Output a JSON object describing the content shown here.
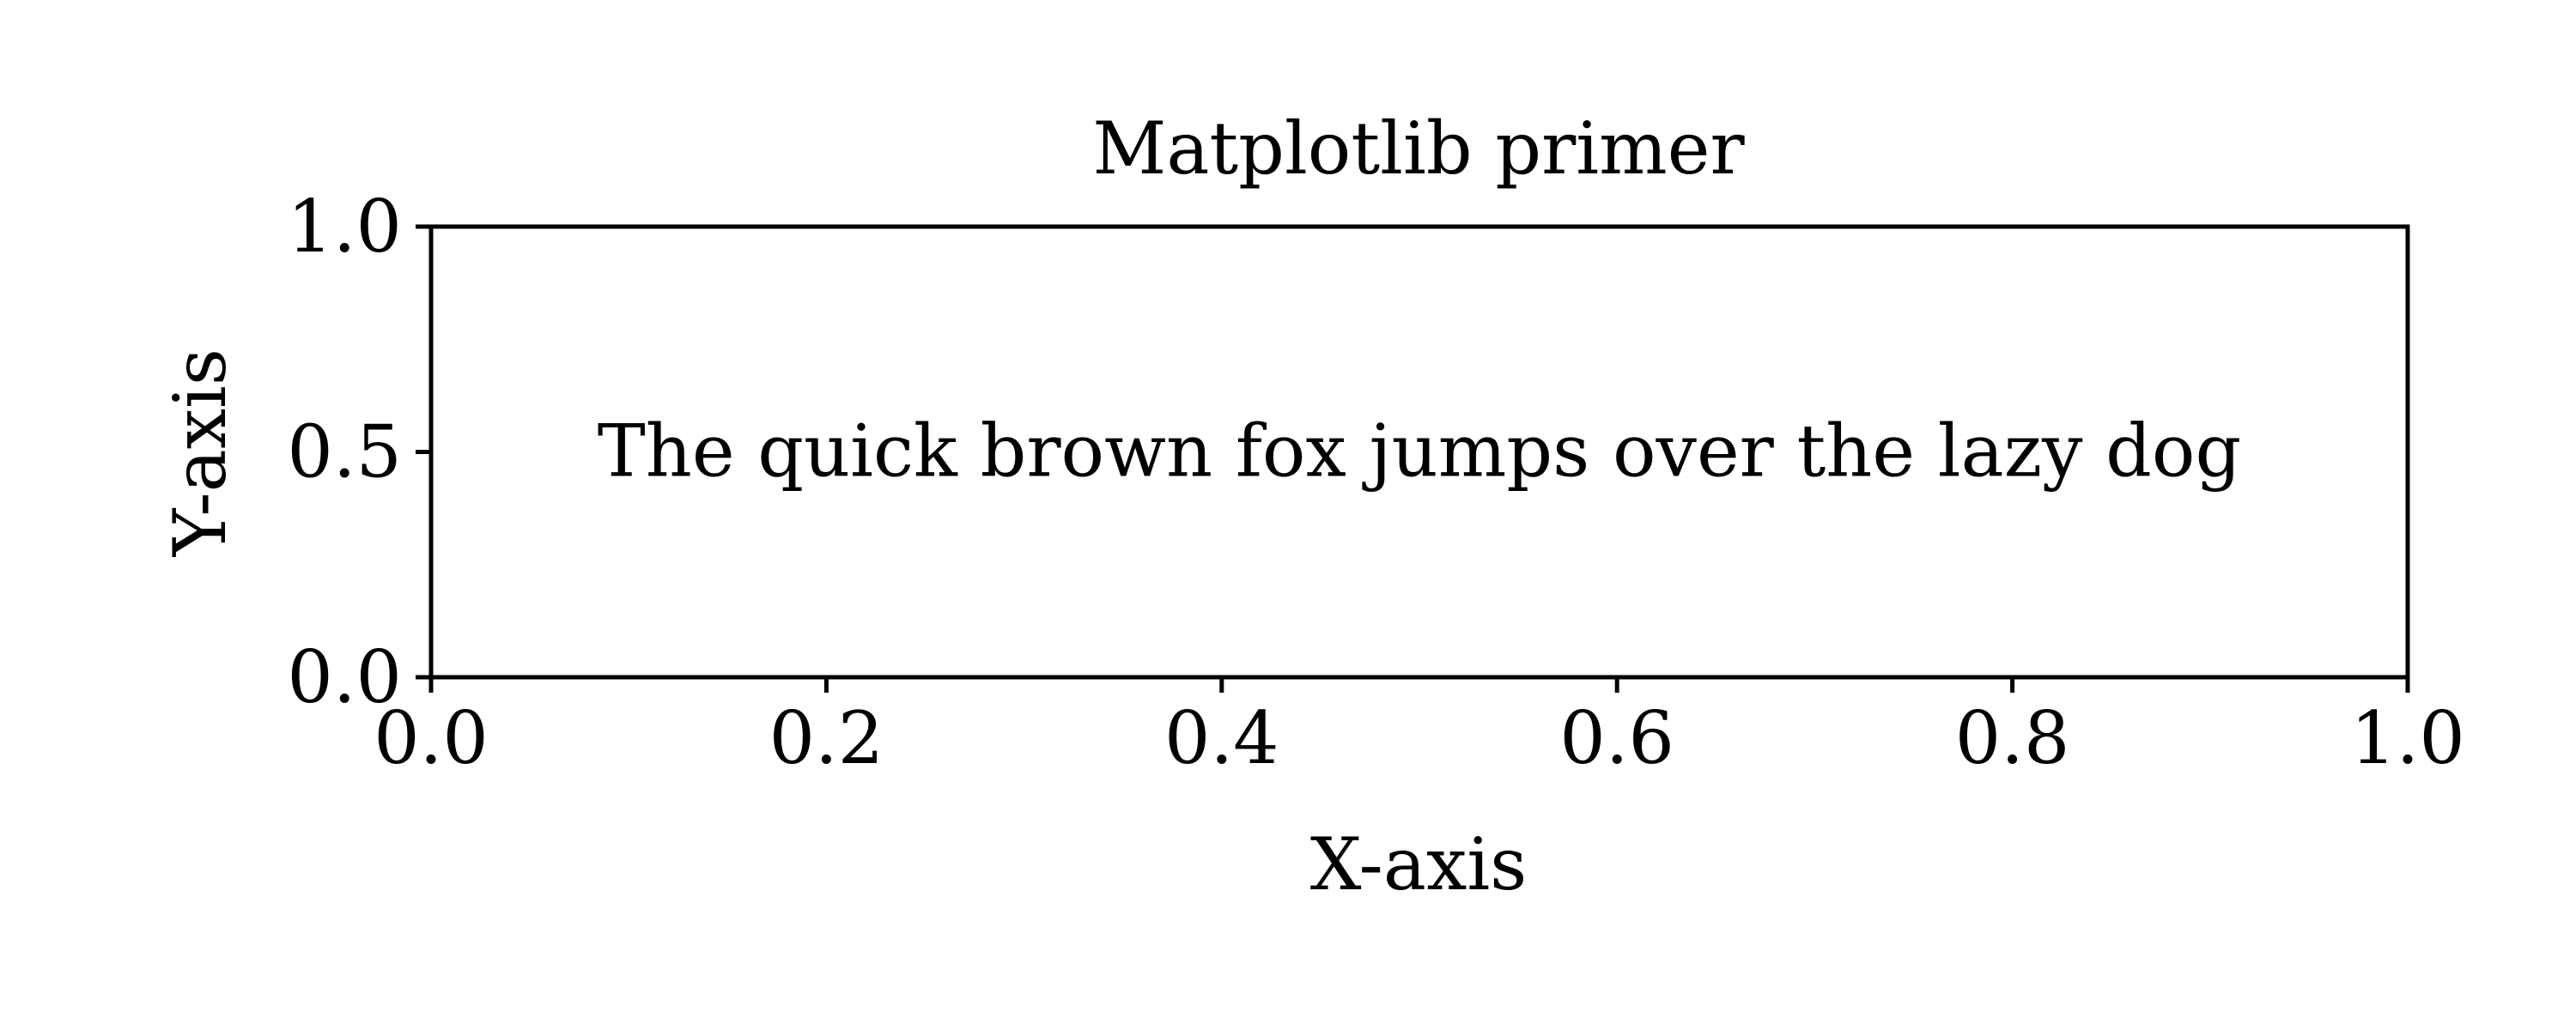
{
  "chart_data": {
    "type": "scatter",
    "title": "Matplotlib primer",
    "xlabel": "X-axis",
    "ylabel": "Y-axis",
    "xlim": [
      0.0,
      1.0
    ],
    "ylim": [
      0.0,
      1.0
    ],
    "x_ticks": [
      {
        "value": 0.0,
        "label": "0.0"
      },
      {
        "value": 0.2,
        "label": "0.2"
      },
      {
        "value": 0.4,
        "label": "0.4"
      },
      {
        "value": 0.6,
        "label": "0.6"
      },
      {
        "value": 0.8,
        "label": "0.8"
      },
      {
        "value": 1.0,
        "label": "1.0"
      }
    ],
    "y_ticks": [
      {
        "value": 0.0,
        "label": "0.0"
      },
      {
        "value": 0.5,
        "label": "0.5"
      },
      {
        "value": 1.0,
        "label": "1.0"
      }
    ],
    "grid": false,
    "series": [],
    "annotations": [
      {
        "text": "The quick brown fox jumps over the lazy dog",
        "x": 0.5,
        "y": 0.5
      }
    ]
  }
}
